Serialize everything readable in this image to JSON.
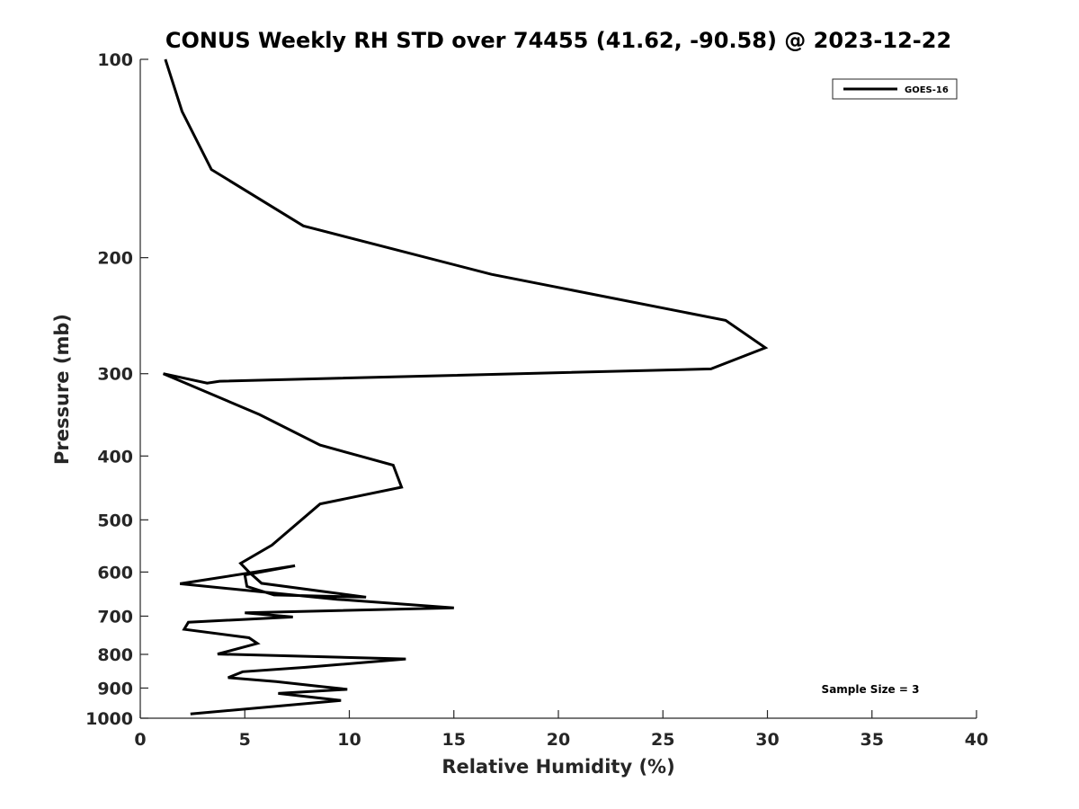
{
  "chart_data": {
    "type": "line",
    "title": "CONUS Weekly RH STD over 74455 (41.62, -90.58) @ 2023-12-22",
    "xlabel": "Relative Humidity (%)",
    "ylabel": "Pressure (mb)",
    "xlim": [
      0,
      40
    ],
    "ylim": [
      100,
      1000
    ],
    "y_scale": "log",
    "y_reversed": true,
    "x_ticks": [
      0,
      5,
      10,
      15,
      20,
      25,
      30,
      35,
      40
    ],
    "y_ticks": [
      100,
      200,
      300,
      400,
      500,
      600,
      700,
      800,
      900,
      1000
    ],
    "grid": false,
    "legend_position": "top-right",
    "annotation": "Sample Size = 3",
    "series": [
      {
        "name": "GOES-16",
        "color": "#000000",
        "x": [
          1.2,
          2.0,
          3.4,
          7.8,
          16.8,
          28.0,
          29.9,
          27.3,
          3.8,
          3.2,
          1.1,
          5.7,
          8.6,
          12.1,
          12.5,
          8.6,
          6.3,
          4.8,
          5.2,
          5.8,
          10.8,
          6.4,
          5.1,
          5.0,
          7.4,
          1.9,
          9.4,
          15.0,
          5.0,
          7.3,
          2.3,
          2.1,
          5.2,
          5.6,
          3.7,
          12.7,
          7.9,
          4.9,
          4.2,
          6.5,
          9.9,
          6.6,
          9.6,
          2.4
        ],
        "y": [
          100,
          120,
          147,
          179,
          212,
          249,
          274,
          295,
          308,
          310,
          300,
          346,
          385,
          413,
          446,
          473,
          546,
          582,
          600,
          624,
          655,
          650,
          631,
          606,
          587,
          625,
          660,
          680,
          692,
          702,
          715,
          733,
          755,
          770,
          799,
          813,
          837,
          850,
          868,
          880,
          904,
          917,
          940,
          985
        ]
      }
    ]
  }
}
